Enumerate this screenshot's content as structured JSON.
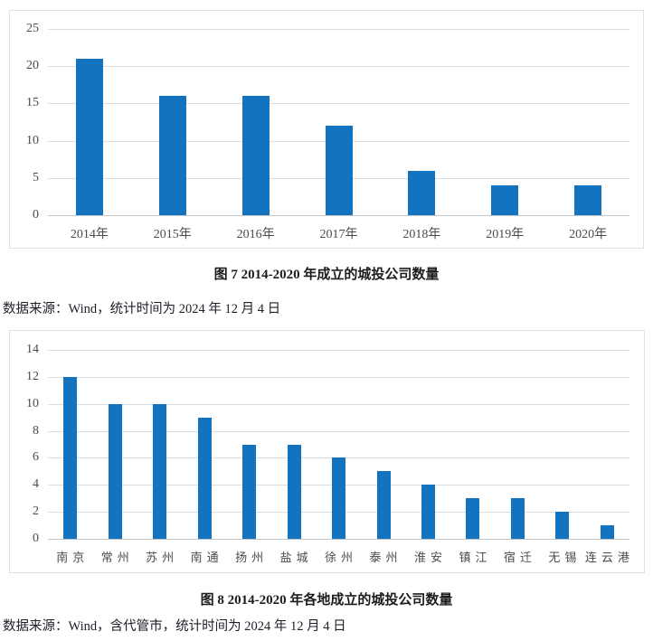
{
  "colors": {
    "bar": "#1373BE",
    "gridline": "#DEDEDE",
    "axis_line": "#C4C4C4",
    "box_border": "#E1E1E1",
    "tick_text": "#4B4B4B",
    "caption_text": "#1C1C1C",
    "source_text": "#21212B"
  },
  "figure7": {
    "caption": "图 7 2014-2020 年成立的城投公司数量",
    "source": "数据来源：Wind，统计时间为 2024 年 12 月 4 日"
  },
  "figure8": {
    "caption": "图 8 2014-2020 年各地成立的城投公司数量",
    "source": "数据来源：Wind，含代管市，统计时间为 2024 年 12 月 4 日"
  },
  "chart_data": [
    {
      "type": "bar",
      "title": "图 7 2014-2020 年成立的城投公司数量",
      "categories": [
        "2014年",
        "2015年",
        "2016年",
        "2017年",
        "2018年",
        "2019年",
        "2020年"
      ],
      "values": [
        21,
        16,
        16,
        12,
        6,
        4,
        4
      ],
      "xlabel": "",
      "ylabel": "",
      "ylim": [
        0,
        25
      ],
      "yticks": [
        0,
        5,
        10,
        15,
        20,
        25
      ],
      "grid": true,
      "legend": false,
      "bar_color": "#1373BE"
    },
    {
      "type": "bar",
      "title": "图 8 2014-2020 年各地成立的城投公司数量",
      "categories": [
        "南京",
        "常州",
        "苏州",
        "南通",
        "扬州",
        "盐城",
        "徐州",
        "泰州",
        "淮安",
        "镇江",
        "宿迁",
        "无锡",
        "连云港"
      ],
      "values": [
        12,
        10,
        10,
        9,
        7,
        7,
        6,
        5,
        4,
        3,
        3,
        2,
        1
      ],
      "xlabel": "",
      "ylabel": "",
      "ylim": [
        0,
        14
      ],
      "yticks": [
        0,
        2,
        4,
        6,
        8,
        10,
        12,
        14
      ],
      "grid": true,
      "legend": false,
      "bar_color": "#1373BE"
    }
  ]
}
